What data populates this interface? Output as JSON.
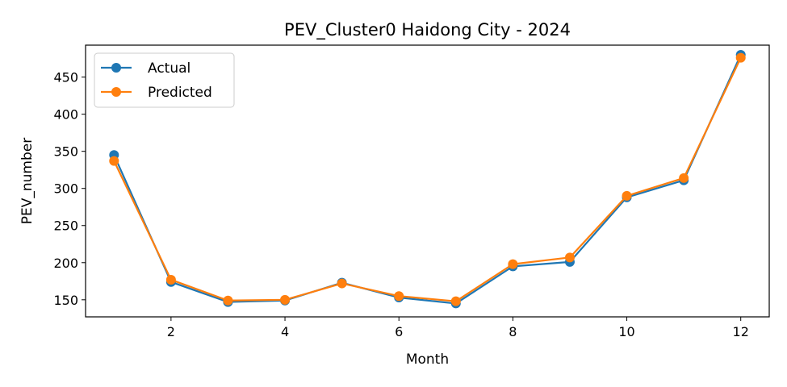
{
  "chart_data": {
    "type": "line",
    "title": "PEV_Cluster0 Haidong City - 2024",
    "xlabel": "Month",
    "ylabel": "PEV_number",
    "xlim": [
      0.5,
      12.5
    ],
    "ylim": [
      127,
      493
    ],
    "xticks": [
      2,
      4,
      6,
      8,
      10,
      12
    ],
    "yticks": [
      150,
      200,
      250,
      300,
      350,
      400,
      450
    ],
    "grid": false,
    "legend_position": "top-left",
    "x": [
      1,
      2,
      3,
      4,
      5,
      6,
      7,
      8,
      9,
      10,
      11,
      12
    ],
    "series": [
      {
        "name": "Actual",
        "color": "#1f77b4",
        "marker": "circle",
        "values": [
          345,
          174,
          147,
          149,
          173,
          153,
          145,
          195,
          201,
          288,
          311,
          480
        ]
      },
      {
        "name": "Predicted",
        "color": "#ff7f0e",
        "marker": "circle",
        "values": [
          337,
          177,
          149,
          150,
          172,
          155,
          148,
          198,
          207,
          290,
          314,
          476
        ]
      }
    ]
  }
}
